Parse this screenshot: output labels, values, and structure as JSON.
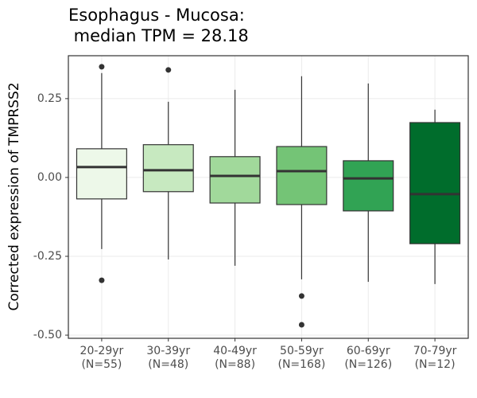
{
  "chart_data": {
    "type": "box",
    "title": [
      "Esophagus - Mucosa:",
      " median TPM = 28.18"
    ],
    "y_label": "Corrected expression of TMPRSS2",
    "categories": [
      "20-29yr",
      "30-39yr",
      "40-49yr",
      "50-59yr",
      "60-69yr",
      "70-79yr"
    ],
    "category_counts": [
      "(N=55)",
      "(N=48)",
      "(N=88)",
      "(N=168)",
      "(N=126)",
      "(N=12)"
    ],
    "colors": [
      "#edf8e9",
      "#c7e9c0",
      "#a1d99b",
      "#74c476",
      "#31a354",
      "#006d2c"
    ],
    "boxes": [
      {
        "whisker_low": -0.227,
        "q1": -0.068,
        "median": 0.033,
        "q3": 0.091,
        "whisker_high": 0.331,
        "outliers": [
          0.351,
          -0.326
        ]
      },
      {
        "whisker_low": -0.26,
        "q1": -0.045,
        "median": 0.023,
        "q3": 0.104,
        "whisker_high": 0.24,
        "outliers": [
          0.341
        ]
      },
      {
        "whisker_low": -0.28,
        "q1": -0.081,
        "median": 0.005,
        "q3": 0.066,
        "whisker_high": 0.278,
        "outliers": []
      },
      {
        "whisker_low": -0.323,
        "q1": -0.086,
        "median": 0.02,
        "q3": 0.098,
        "whisker_high": 0.321,
        "outliers": [
          -0.376,
          -0.467
        ]
      },
      {
        "whisker_low": -0.331,
        "q1": -0.106,
        "median": -0.003,
        "q3": 0.053,
        "whisker_high": 0.298,
        "outliers": []
      },
      {
        "whisker_low": -0.338,
        "q1": -0.21,
        "median": -0.053,
        "q3": 0.174,
        "whisker_high": 0.215,
        "outliers": []
      }
    ],
    "ylim": [
      -0.51,
      0.386
    ],
    "yticks": [
      {
        "value": -0.5,
        "label": "-0.50"
      },
      -0.25,
      {
        "value": 0,
        "label": "0.00"
      },
      0.25
    ],
    "grid": true
  }
}
